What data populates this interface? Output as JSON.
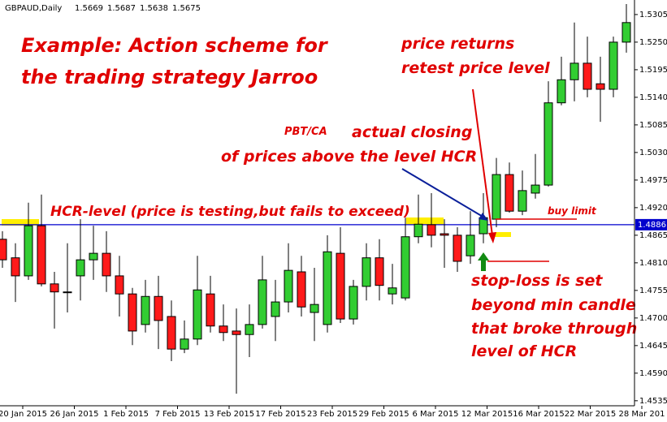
{
  "chart_data": {
    "type": "candlestick",
    "symbol": "GBPAUD,Daily",
    "quote": [
      "1.5669",
      "1.5687",
      "1.5638",
      "1.5675"
    ],
    "annotations": {
      "title_1": "Example: Action scheme for",
      "title_2": "the trading strategy Jarroo",
      "retest_1": "price returns",
      "retest_2": "retest price level",
      "pbt": "PBT/CA",
      "closing_1": "actual closing",
      "closing_2": "of prices above the level HCR",
      "hcr": "HCR-level (price is testing,but fails to exceed)",
      "buy_limit": "buy limit",
      "stop_1": "stop-loss is set",
      "stop_2": "beyond min candle",
      "stop_3": "that broke through",
      "stop_4": "level of HCR"
    },
    "x_labels": [
      "20 Jan 2015",
      "26 Jan 2015",
      "1 Feb 2015",
      "7 Feb 2015",
      "13 Feb 2015",
      "17 Feb 2015",
      "23 Feb 2015",
      "29 Feb 2015",
      "6 Mar 2015",
      "12 Mar 2015",
      "16 Mar 2015",
      "22 Mar 2015",
      "28 Mar 201"
    ],
    "open": [
      1.4857,
      1.482,
      1.4784,
      1.4884,
      1.4768,
      1.4752,
      1.4784,
      1.4816,
      1.4829,
      1.4784,
      1.4748,
      1.4687,
      1.4743,
      1.4703,
      1.4638,
      1.4658,
      1.4748,
      1.4684,
      1.4674,
      1.4667,
      1.4687,
      1.4703,
      1.4732,
      1.4792,
      1.4711,
      1.4687,
      1.4829,
      1.4698,
      1.4763,
      1.482,
      1.4748,
      1.474,
      1.4862,
      1.4886,
      1.4868,
      1.4865,
      1.4824,
      1.4868,
      1.4897,
      1.4986,
      1.4913,
      1.4949,
      1.4965,
      1.5129,
      1.5175,
      1.5208,
      1.5167,
      1.5156,
      1.525
    ],
    "high": [
      1.4873,
      1.4849,
      1.493,
      1.4946,
      1.4792,
      1.4849,
      1.4897,
      1.4884,
      1.4873,
      1.4824,
      1.476,
      1.4776,
      1.4784,
      1.4735,
      1.4695,
      1.4824,
      1.4784,
      1.4727,
      1.4719,
      1.4727,
      1.4824,
      1.4776,
      1.4849,
      1.4824,
      1.48,
      1.4865,
      1.4881,
      1.4776,
      1.4849,
      1.4857,
      1.4808,
      1.49,
      1.4946,
      1.4949,
      1.4897,
      1.4881,
      1.4913,
      1.4949,
      1.5019,
      1.501,
      1.4994,
      1.5027,
      1.5172,
      1.5221,
      1.5289,
      1.5261,
      1.5221,
      1.5261,
      1.5326
    ],
    "low": [
      1.48,
      1.4732,
      1.4776,
      1.4763,
      1.4679,
      1.4711,
      1.4735,
      1.4776,
      1.4752,
      1.4703,
      1.4646,
      1.4671,
      1.4638,
      1.4614,
      1.463,
      1.4646,
      1.4671,
      1.4654,
      1.4549,
      1.4622,
      1.4679,
      1.4654,
      1.4711,
      1.4703,
      1.4654,
      1.4671,
      1.469,
      1.4687,
      1.4735,
      1.4735,
      1.4727,
      1.4735,
      1.4849,
      1.4841,
      1.48,
      1.4792,
      1.4808,
      1.4849,
      1.4881,
      1.491,
      1.4905,
      1.4938,
      1.4962,
      1.5124,
      1.5132,
      1.514,
      1.5091,
      1.514,
      1.5229
    ],
    "close": [
      1.4816,
      1.4784,
      1.4884,
      1.4768,
      1.4752,
      1.4752,
      1.4816,
      1.4829,
      1.4784,
      1.4748,
      1.4674,
      1.4743,
      1.4695,
      1.4638,
      1.4658,
      1.4756,
      1.4684,
      1.4671,
      1.4667,
      1.4687,
      1.4776,
      1.4732,
      1.4795,
      1.4722,
      1.4727,
      1.4832,
      1.4698,
      1.4763,
      1.482,
      1.4765,
      1.476,
      1.4862,
      1.4887,
      1.4865,
      1.4865,
      1.4813,
      1.4865,
      1.49,
      1.4986,
      1.4913,
      1.4954,
      1.4965,
      1.5129,
      1.5175,
      1.5208,
      1.5156,
      1.5156,
      1.525,
      1.5289
    ],
    "up_color": "#32cd32",
    "down_color": "#ff1a1a",
    "ylim": [
      1.4525,
      1.5334
    ],
    "yticks": [
      1.5305,
      {
        "value": 1.525,
        "label": "1.5250"
      },
      1.5195,
      {
        "value": 1.514,
        "label": "1.5140"
      },
      1.5085,
      {
        "value": 1.503,
        "label": "1.5030"
      },
      1.4975,
      {
        "value": 1.492,
        "label": "1.4920"
      },
      1.4865,
      {
        "value": 1.481,
        "label": "1.4810"
      },
      1.4755,
      {
        "value": 1.47,
        "label": "1.4700"
      },
      1.4645,
      {
        "value": 1.459,
        "label": "1.4590"
      },
      1.4535
    ],
    "hline": 1.4886,
    "hline_color": "#0000cd"
  }
}
